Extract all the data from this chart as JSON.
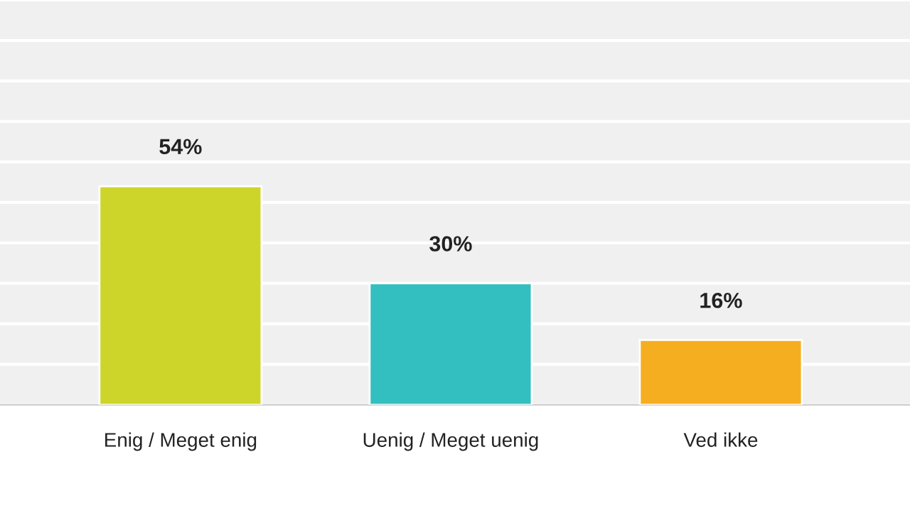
{
  "chart_data": {
    "type": "bar",
    "categories": [
      "Enig / Meget enig",
      "Uenig / Meget uenig",
      "Ved ikke"
    ],
    "values": [
      54,
      30,
      16
    ],
    "colors": [
      "#cdd52a",
      "#33bfbf",
      "#f5ae1f"
    ],
    "value_labels": [
      "54%",
      "30%",
      "16%"
    ],
    "ylim": [
      0,
      100
    ],
    "yticks": [
      {
        "value": 0,
        "label": null
      },
      {
        "value": 10,
        "label": null
      },
      {
        "value": 20,
        "label": null
      },
      {
        "value": 30,
        "label": null
      },
      {
        "value": 40,
        "label": null
      },
      {
        "value": 50,
        "label": null
      },
      {
        "value": 60,
        "label": null
      },
      {
        "value": 70,
        "label": null
      },
      {
        "value": 80,
        "label": null
      },
      {
        "value": 90,
        "label": null
      },
      {
        "value": 100,
        "label": null
      }
    ],
    "tick_labels": "x",
    "grid": "y",
    "legend": false
  }
}
